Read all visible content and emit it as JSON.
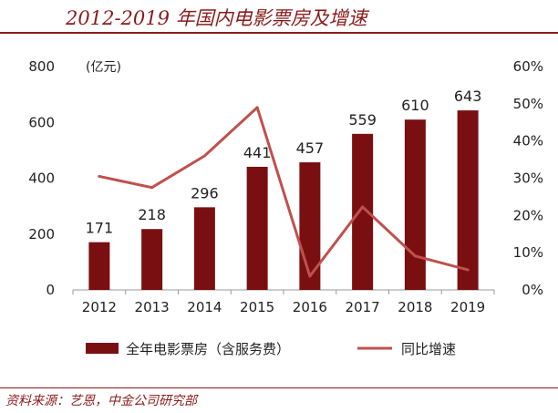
{
  "title": "2012-2019 年国内电影票房及增速",
  "source": "资料来源：艺恩，中金公司研究部",
  "chart_data": {
    "type": "bar+line",
    "categories": [
      "2012",
      "2013",
      "2014",
      "2015",
      "2016",
      "2017",
      "2018",
      "2019"
    ],
    "unit_label": "(亿元)",
    "y_left": {
      "range": [
        0,
        800
      ],
      "ticks": [
        "0",
        "200",
        "400",
        "600",
        "800"
      ]
    },
    "y_right": {
      "range": [
        0,
        0.6
      ],
      "ticks": [
        "0%",
        "10%",
        "20%",
        "30%",
        "40%",
        "50%",
        "60%"
      ]
    },
    "series": [
      {
        "name": "全年电影票房（含服务费）",
        "type": "bar",
        "axis": "left",
        "values": [
          171,
          218,
          296,
          441,
          457,
          559,
          610,
          643
        ],
        "labels": [
          "171",
          "218",
          "296",
          "441",
          "457",
          "559",
          "610",
          "643"
        ],
        "color": "#7a0f12"
      },
      {
        "name": "同比增速",
        "type": "line",
        "axis": "right",
        "values": [
          0.305,
          0.275,
          0.36,
          0.49,
          0.037,
          0.223,
          0.091,
          0.054
        ],
        "color": "#c0504d"
      }
    ],
    "legend_position": "bottom",
    "grid": false
  }
}
